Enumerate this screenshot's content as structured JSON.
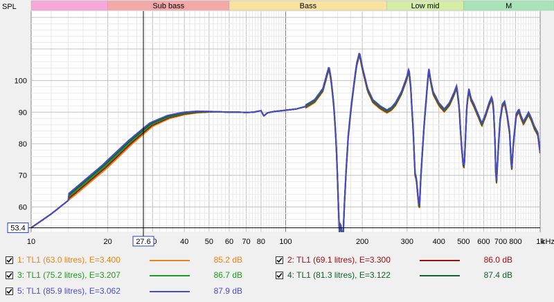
{
  "chart_data": {
    "type": "line",
    "ylabel": "SPL",
    "xunit_label": "kHz",
    "x_scale": "log",
    "xlim": [
      10,
      1000
    ],
    "ylim": [
      52,
      122
    ],
    "x_ticks": [
      10,
      20,
      30,
      40,
      50,
      60,
      70,
      80,
      100,
      200,
      300,
      400,
      500,
      600,
      700,
      800,
      1000
    ],
    "x_tick_labels": [
      "10",
      "20",
      "30",
      "40",
      "50",
      "60",
      "70",
      "80",
      "100",
      "200",
      "300",
      "400",
      "500",
      "600",
      "700",
      "800",
      "1k"
    ],
    "y_ticks": [
      60,
      70,
      80,
      90,
      100
    ],
    "grid": true,
    "cursor": {
      "x": 27.6,
      "y": 53.4,
      "x_label": "27.6",
      "y_label": "53.4"
    },
    "bands": [
      {
        "label": "",
        "from": 10,
        "to": 20,
        "color": "#f7a8d8"
      },
      {
        "label": "Sub bass",
        "from": 20,
        "to": 60,
        "color": "#f4a8a8"
      },
      {
        "label": "Bass",
        "from": 60,
        "to": 250,
        "color": "#f8e2a0"
      },
      {
        "label": "Low mid",
        "from": 250,
        "to": 500,
        "color": "#d4eea8"
      },
      {
        "label": "M",
        "from": 500,
        "to": 1000,
        "color": "#a8e4b8"
      }
    ],
    "base_curve": [
      [
        10,
        53.4
      ],
      [
        12,
        57.8
      ],
      [
        15,
        64.0
      ],
      [
        20,
        72.5
      ],
      [
        25,
        80.0
      ],
      [
        27.6,
        83.0
      ],
      [
        30,
        85.5
      ],
      [
        35,
        88.0
      ],
      [
        40,
        89.2
      ],
      [
        45,
        89.8
      ],
      [
        50,
        90.0
      ],
      [
        55,
        90.1
      ],
      [
        60,
        90.0
      ],
      [
        65,
        90.0
      ],
      [
        70,
        89.9
      ],
      [
        75,
        90.0
      ],
      [
        80,
        90.5
      ],
      [
        82,
        88.8
      ],
      [
        85,
        89.8
      ],
      [
        90,
        90.2
      ],
      [
        100,
        90.6
      ],
      [
        110,
        91.0
      ],
      [
        120,
        91.8
      ],
      [
        130,
        93.5
      ],
      [
        140,
        97.0
      ],
      [
        145,
        101.5
      ],
      [
        148,
        104.0
      ],
      [
        151,
        100.0
      ],
      [
        155,
        91.0
      ],
      [
        158,
        80.0
      ],
      [
        160,
        68.0
      ],
      [
        162,
        55.0
      ],
      [
        163,
        50.5
      ],
      [
        164,
        55.0
      ],
      [
        166,
        52.0
      ],
      [
        168,
        50.0
      ],
      [
        170,
        60.0
      ],
      [
        173,
        72.0
      ],
      [
        176,
        82.0
      ],
      [
        180,
        90.0
      ],
      [
        185,
        98.0
      ],
      [
        190,
        105.0
      ],
      [
        195,
        108.5
      ],
      [
        200,
        104.0
      ],
      [
        210,
        97.0
      ],
      [
        220,
        93.5
      ],
      [
        235,
        91.5
      ],
      [
        250,
        90.2
      ],
      [
        260,
        91.0
      ],
      [
        270,
        92.5
      ],
      [
        285,
        96.0
      ],
      [
        300,
        101.0
      ],
      [
        305,
        103.5
      ],
      [
        310,
        98.0
      ],
      [
        318,
        82.0
      ],
      [
        322,
        70.5
      ],
      [
        326,
        69.0
      ],
      [
        328,
        67.0
      ],
      [
        332,
        62.0
      ],
      [
        335,
        59.0
      ],
      [
        340,
        70.0
      ],
      [
        350,
        86.0
      ],
      [
        360,
        98.0
      ],
      [
        365,
        103.5
      ],
      [
        372,
        99.5
      ],
      [
        380,
        96.0
      ],
      [
        400,
        92.5
      ],
      [
        420,
        90.5
      ],
      [
        440,
        92.5
      ],
      [
        460,
        96.0
      ],
      [
        470,
        98.0
      ],
      [
        480,
        92.0
      ],
      [
        490,
        80.0
      ],
      [
        500,
        72.0
      ],
      [
        505,
        75.0
      ],
      [
        515,
        92.0
      ],
      [
        525,
        97.0
      ],
      [
        535,
        94.0
      ],
      [
        550,
        92.0
      ],
      [
        570,
        89.0
      ],
      [
        590,
        86.0
      ],
      [
        610,
        89.0
      ],
      [
        630,
        92.5
      ],
      [
        645,
        94.5
      ],
      [
        655,
        92.0
      ],
      [
        665,
        80.0
      ],
      [
        672,
        66.0
      ],
      [
        680,
        74.0
      ],
      [
        695,
        87.0
      ],
      [
        710,
        92.0
      ],
      [
        725,
        93.0
      ],
      [
        740,
        89.5
      ],
      [
        760,
        83.0
      ],
      [
        772,
        71.0
      ],
      [
        785,
        80.0
      ],
      [
        805,
        89.0
      ],
      [
        825,
        90.5
      ],
      [
        840,
        88.5
      ],
      [
        860,
        86.5
      ],
      [
        880,
        88.0
      ],
      [
        900,
        89.5
      ],
      [
        920,
        88.0
      ],
      [
        950,
        85.0
      ],
      [
        980,
        83.0
      ],
      [
        1000,
        77.0
      ]
    ],
    "series": [
      {
        "name": "1: TL1 (63.0 litres), E=3.400",
        "value_label": "85.2 dB",
        "color": "#e88418",
        "shift_hz": 0.0,
        "checked": true
      },
      {
        "name": "2: TL1 (69.1 litres), E=3.300",
        "value_label": "86.0 dB",
        "color": "#a01010",
        "shift_hz": 0.6,
        "checked": true
      },
      {
        "name": "3: TL1 (75.2 litres), E=3.207",
        "value_label": "86.7 dB",
        "color": "#1e9a1e",
        "shift_hz": 1.2,
        "checked": true
      },
      {
        "name": "4: TL1 (81.3 litres), E=3.122",
        "value_label": "87.4 dB",
        "color": "#106030",
        "shift_hz": 1.8,
        "checked": true
      },
      {
        "name": "5: TL1 (85.9 litres), E=3.062",
        "value_label": "87.9 dB",
        "color": "#4a4ac8",
        "shift_hz": 2.4,
        "checked": true
      }
    ]
  }
}
